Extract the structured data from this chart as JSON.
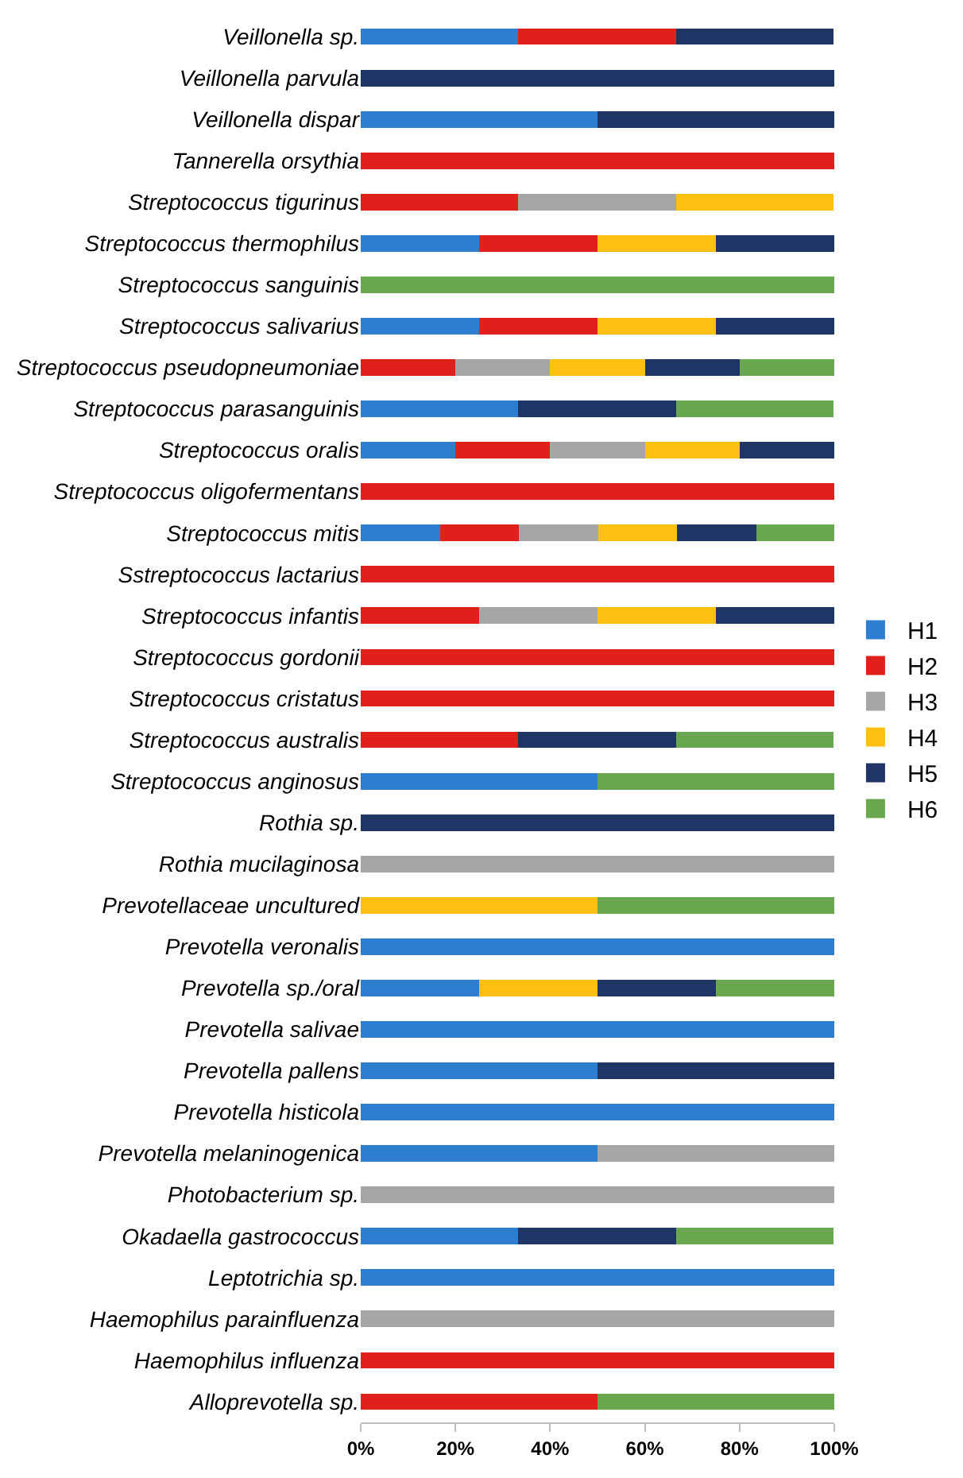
{
  "chart_data": {
    "type": "bar",
    "orientation": "horizontal",
    "stacked": true,
    "categories": [
      "Veillonella sp.",
      "Veillonella parvula",
      "Veillonella dispar",
      "Tannerella orsythia",
      "Streptococcus tigurinus",
      "Streptococcus thermophilus",
      "Streptococcus sanguinis",
      "Streptococcus salivarius",
      "Streptococcus pseudopneumoniae",
      "Streptococcus parasanguinis",
      "Streptococcus oralis",
      "Streptococcus oligofermentans",
      "Streptococcus mitis",
      "Sstreptococcus lactarius",
      "Streptococcus infantis",
      "Streptococcus gordonii",
      "Streptococcus cristatus",
      "Streptococcus australis",
      "Streptococcus anginosus",
      "Rothia sp.",
      "Rothia mucilaginosa",
      "Prevotellaceae uncultured",
      "Prevotella veronalis",
      "Prevotella sp./oral",
      "Prevotella salivae",
      "Prevotella pallens",
      "Prevotella histicola",
      "Prevotella melaninogenica",
      "Photobacterium sp.",
      "Okadaella gastrococcus",
      "Leptotrichia sp.",
      "Haemophilus parainfluenza",
      "Haemophilus influenza",
      "Alloprevotella sp."
    ],
    "series": [
      {
        "name": "H1",
        "color": "#2e7dd1",
        "values": [
          33.3,
          0,
          50,
          0,
          0,
          25,
          0,
          25,
          0,
          33.3,
          20,
          0,
          16.7,
          0,
          0,
          0,
          0,
          0,
          50,
          0,
          0,
          0,
          100,
          25,
          100,
          50,
          100,
          50,
          0,
          33.3,
          100,
          0,
          0,
          0
        ]
      },
      {
        "name": "H2",
        "color": "#e0201b",
        "values": [
          33.3,
          0,
          0,
          100,
          33.3,
          25,
          0,
          25,
          20,
          0,
          20,
          100,
          16.7,
          100,
          25,
          100,
          100,
          33.3,
          0,
          0,
          0,
          0,
          0,
          0,
          0,
          0,
          0,
          0,
          0,
          0,
          0,
          0,
          100,
          50
        ]
      },
      {
        "name": "H3",
        "color": "#a6a6a6",
        "values": [
          0,
          0,
          0,
          0,
          33.3,
          0,
          0,
          0,
          20,
          0,
          20,
          0,
          16.7,
          0,
          25,
          0,
          0,
          0,
          0,
          0,
          100,
          0,
          0,
          0,
          0,
          0,
          0,
          50,
          100,
          0,
          0,
          100,
          0,
          0
        ]
      },
      {
        "name": "H4",
        "color": "#fcc010",
        "values": [
          0,
          0,
          0,
          0,
          33.3,
          25,
          0,
          25,
          20,
          0,
          20,
          0,
          16.7,
          0,
          25,
          0,
          0,
          0,
          0,
          0,
          0,
          50,
          0,
          25,
          0,
          0,
          0,
          0,
          0,
          0,
          0,
          0,
          0,
          0
        ]
      },
      {
        "name": "H5",
        "color": "#1f3566",
        "values": [
          33.3,
          100,
          50,
          0,
          0,
          25,
          0,
          25,
          20,
          33.3,
          20,
          0,
          16.7,
          0,
          25,
          0,
          0,
          33.3,
          0,
          100,
          0,
          0,
          0,
          25,
          0,
          50,
          0,
          0,
          0,
          33.3,
          0,
          0,
          0,
          0
        ]
      },
      {
        "name": "H6",
        "color": "#6aa84f",
        "values": [
          0,
          0,
          0,
          0,
          0,
          0,
          100,
          0,
          20,
          33.3,
          0,
          0,
          16.7,
          0,
          0,
          0,
          0,
          33.3,
          50,
          0,
          0,
          50,
          0,
          25,
          0,
          0,
          0,
          0,
          0,
          33.3,
          0,
          0,
          0,
          50
        ]
      }
    ],
    "xlim": [
      0,
      100
    ],
    "xticks": [
      {
        "value": 0,
        "label": "0%"
      },
      {
        "value": 20,
        "label": "20%"
      },
      {
        "value": 40,
        "label": "40%"
      },
      {
        "value": 60,
        "label": "60%"
      },
      {
        "value": 80,
        "label": "80%"
      },
      {
        "value": 100,
        "label": "100%"
      }
    ],
    "legend": "right"
  }
}
